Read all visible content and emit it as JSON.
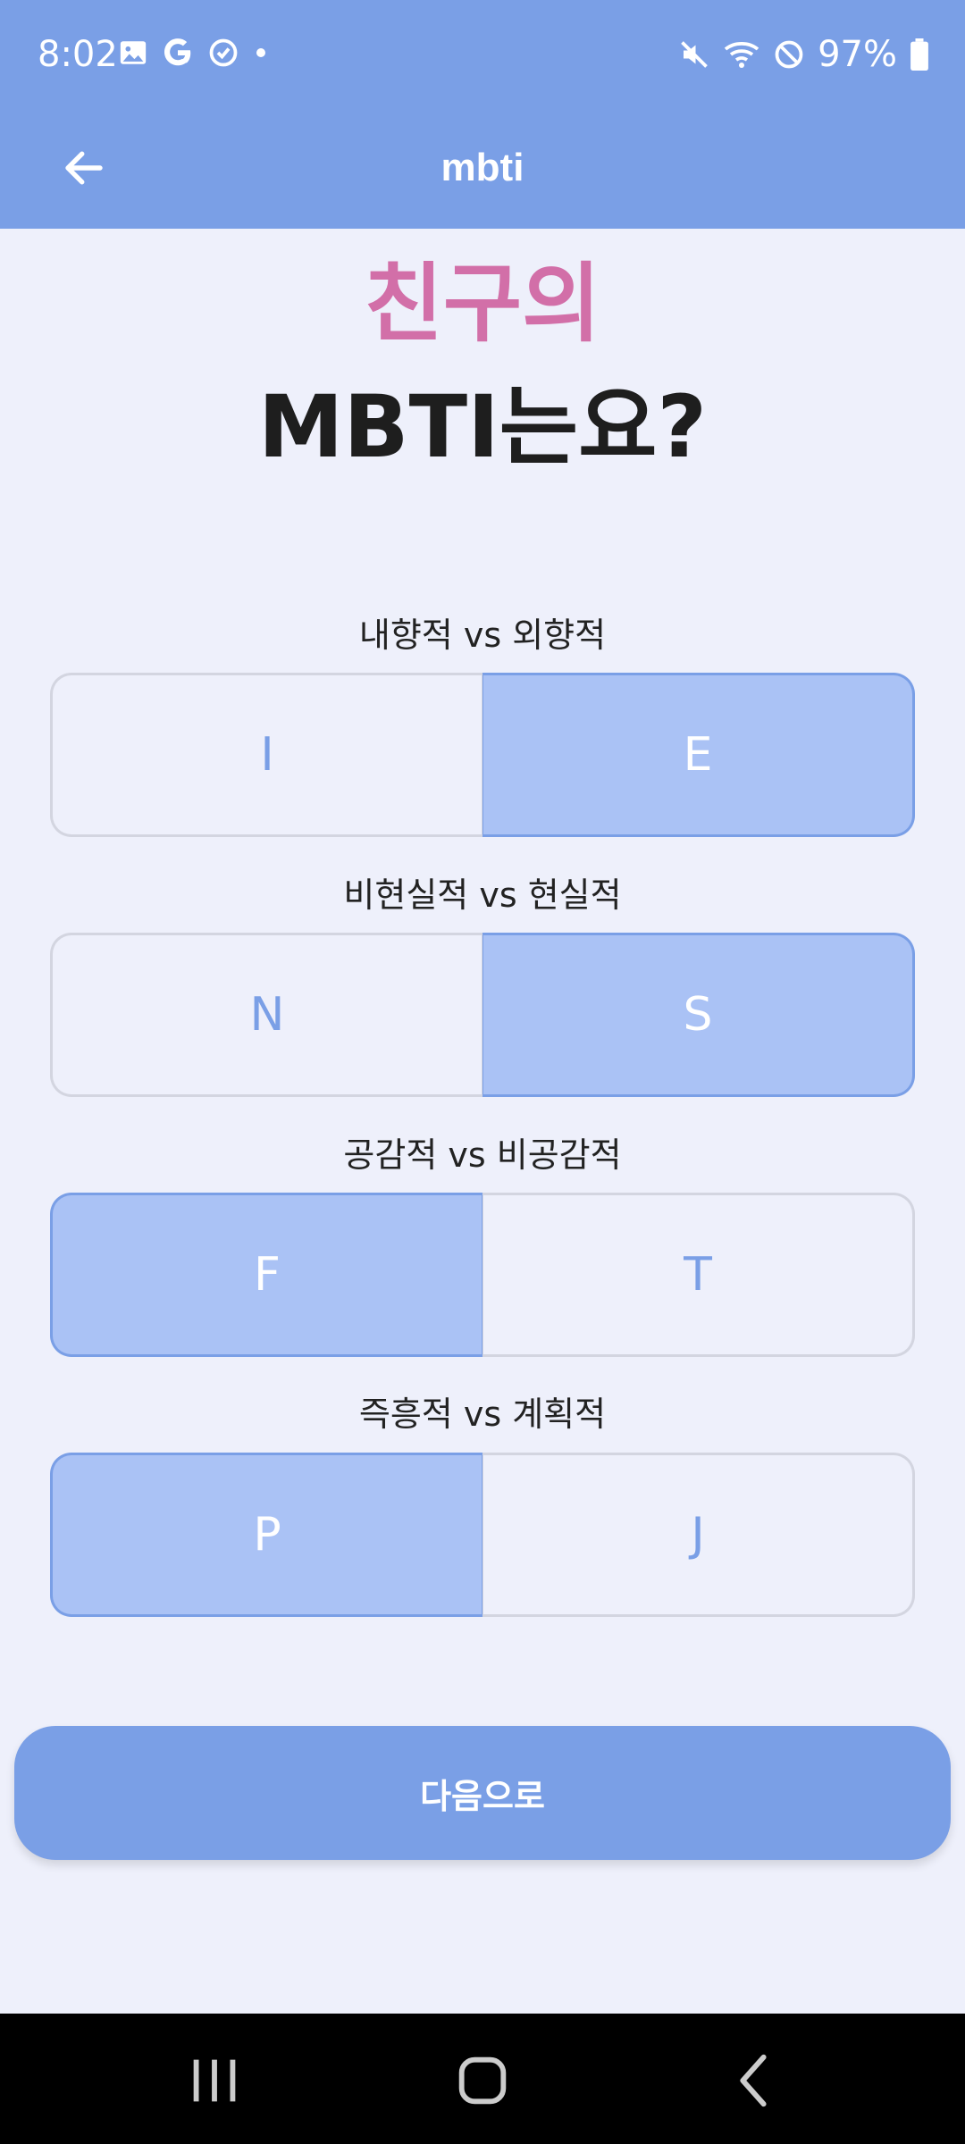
{
  "status_bar": {
    "time": "8:02",
    "battery": "97%",
    "icons_left": [
      "gallery-icon",
      "google-icon",
      "sync-icon",
      "dot-icon"
    ],
    "icons_right": [
      "mute-icon",
      "wifi-icon",
      "dnd-icon",
      "battery-icon"
    ]
  },
  "app_bar": {
    "title": "mbti"
  },
  "headline": {
    "line1": "친구의",
    "line2": "MBTI는요?"
  },
  "questions": [
    {
      "label": "내향적 vs 외향적",
      "left": "I",
      "right": "E",
      "selected": "right"
    },
    {
      "label": "비현실적 vs 현실적",
      "left": "N",
      "right": "S",
      "selected": "right"
    },
    {
      "label": "공감적 vs 비공감적",
      "left": "F",
      "right": "T",
      "selected": "left"
    },
    {
      "label": "즉흥적 vs 계획적",
      "left": "P",
      "right": "J",
      "selected": "left"
    }
  ],
  "next_button": {
    "label": "다음으로"
  },
  "colors": {
    "accent": "#7a9fe6",
    "selected_fill": "#aac2f5",
    "headline_pink": "#d26fa8",
    "background": "#eef0fb"
  }
}
